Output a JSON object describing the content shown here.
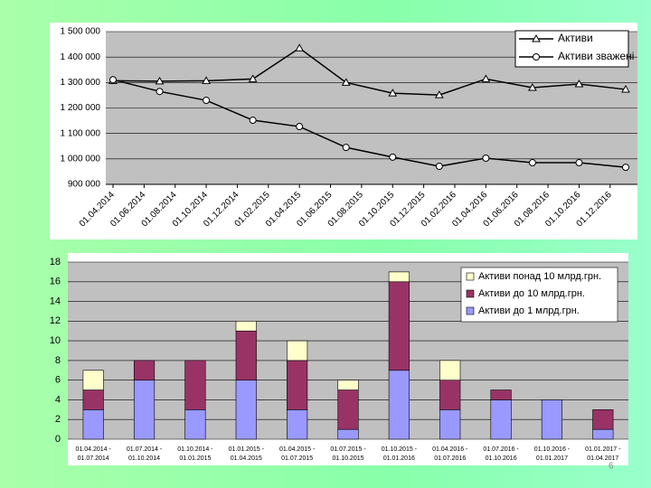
{
  "chart_data": [
    {
      "type": "line",
      "x": [
        "01.04.2014",
        "01.07.2014",
        "01.10.2014",
        "01.01.2015",
        "01.04.2015",
        "01.07.2015",
        "01.10.2015",
        "01.01.2016",
        "01.04.2016",
        "01.07.2016",
        "01.10.2016",
        "01.01.2017"
      ],
      "series": [
        {
          "name": "Активи",
          "color": "#000000",
          "marker": "triangle",
          "values": [
            1307000,
            1305000,
            1307000,
            1314000,
            1435000,
            1300000,
            1258000,
            1251000,
            1314000,
            1280000,
            1294000,
            1273000
          ]
        },
        {
          "name": "Активи зважені",
          "color": "#000000",
          "marker": "circle",
          "values": [
            1311000,
            1265000,
            1230000,
            1152000,
            1127000,
            1045000,
            1007000,
            971000,
            1003000,
            985000,
            985000,
            967000
          ]
        }
      ],
      "xlim": [
        "01.04.2014",
        "01.01.2017"
      ],
      "xticks": [
        "01.04.2014",
        "01.06.2014",
        "01.08.2014",
        "01.10.2014",
        "01.12.2014",
        "01.02.2015",
        "01.04.2015",
        "01.06.2015",
        "01.08.2015",
        "01.10.2015",
        "01.12.2015",
        "01.02.2016",
        "01.04.2016",
        "01.06.2016",
        "01.08.2016",
        "01.10.2016",
        "01.12.2016"
      ],
      "ylim": [
        900000,
        1500000
      ],
      "yticks": [
        {
          "value": 900000,
          "label": "900 000"
        },
        {
          "value": 1000000,
          "label": "1 000 000"
        },
        {
          "value": 1100000,
          "label": "1 100 000"
        },
        {
          "value": 1200000,
          "label": "1 200 000"
        },
        {
          "value": 1300000,
          "label": "1 300 000"
        },
        {
          "value": 1400000,
          "label": "1 400 000"
        },
        {
          "value": 1500000,
          "label": "1 500 000"
        }
      ],
      "legend": "top-right",
      "grid": true
    },
    {
      "type": "stacked-bar",
      "categories": [
        [
          "01.04.2014 -",
          "01.07.2014"
        ],
        [
          "01.07.2014 -",
          "01.10.2014"
        ],
        [
          "01.10.2014 -",
          "01.01.2015"
        ],
        [
          "01.01.2015 -",
          "01.04.2015"
        ],
        [
          "01.04.2015 -",
          "01.07.2015"
        ],
        [
          "01.07.2015 -",
          "01.10.2015"
        ],
        [
          "01.10.2015 -",
          "01.01.2016"
        ],
        [
          "01.04.2016 -",
          "01.07.2016"
        ],
        [
          "01.07.2016 -",
          "01.10.2016"
        ],
        [
          "01.10.2016 -",
          "01.01.2017"
        ],
        [
          "01.01.2017 -",
          "01.04.2017"
        ]
      ],
      "series": [
        {
          "name": "Активи до 1 млрд.грн.",
          "color": "#9999ff",
          "values": [
            3,
            6,
            3,
            6,
            3,
            1,
            7,
            3,
            4,
            4,
            1
          ]
        },
        {
          "name": "Активи до 10 млрд.грн.",
          "color": "#993366",
          "values": [
            2,
            2,
            5,
            5,
            5,
            4,
            9,
            3,
            1,
            0,
            2
          ]
        },
        {
          "name": "Активи понад 10 млрд.грн.",
          "color": "#ffffcc",
          "values": [
            2,
            0,
            0,
            1,
            2,
            1,
            1,
            2,
            0,
            0,
            0
          ]
        }
      ],
      "ylim": [
        0,
        18
      ],
      "yticks": [
        0,
        2,
        4,
        6,
        8,
        10,
        12,
        14,
        16,
        18
      ],
      "legend": "top-right",
      "grid": true
    }
  ],
  "page_number": "6"
}
